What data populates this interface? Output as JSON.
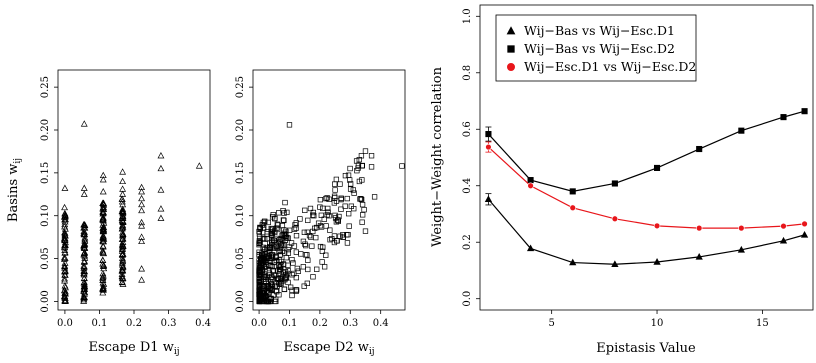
{
  "chart_data": [
    {
      "type": "scatter",
      "xlabel": "Escape D1",
      "xlabel_sub": "ij",
      "xlabel_var": "w",
      "ylabel": "Basins",
      "ylabel_var": "w",
      "ylabel_sub": "ij",
      "xlim": [
        -0.02,
        0.42
      ],
      "ylim": [
        -0.01,
        0.27
      ],
      "xticks": [
        "0.0",
        "0.1",
        "0.2",
        "0.3",
        "0.4"
      ],
      "yticks": [
        "0.00",
        "0.05",
        "0.10",
        "0.15",
        "0.20",
        "0.25"
      ],
      "marker": "open-triangle",
      "grid": false,
      "series": [
        {
          "columns": [
            {
              "x": 0.0,
              "ymin": 0.0,
              "ymax": 0.11
            },
            {
              "x": 0.056,
              "ymin": 0.0,
              "ymax": 0.09
            },
            {
              "x": 0.111,
              "ymin": 0.01,
              "ymax": 0.12
            },
            {
              "x": 0.167,
              "ymin": 0.02,
              "ymax": 0.12
            }
          ],
          "points": [
            {
              "x": 0.0,
              "y": 0.132
            },
            {
              "x": 0.056,
              "y": 0.207
            },
            {
              "x": 0.056,
              "y": 0.132
            },
            {
              "x": 0.056,
              "y": 0.125
            },
            {
              "x": 0.111,
              "y": 0.147
            },
            {
              "x": 0.111,
              "y": 0.142
            },
            {
              "x": 0.111,
              "y": 0.128
            },
            {
              "x": 0.167,
              "y": 0.151
            },
            {
              "x": 0.167,
              "y": 0.14
            },
            {
              "x": 0.167,
              "y": 0.131
            },
            {
              "x": 0.167,
              "y": 0.125
            },
            {
              "x": 0.222,
              "y": 0.133
            },
            {
              "x": 0.222,
              "y": 0.128
            },
            {
              "x": 0.222,
              "y": 0.12
            },
            {
              "x": 0.222,
              "y": 0.113
            },
            {
              "x": 0.222,
              "y": 0.106
            },
            {
              "x": 0.222,
              "y": 0.092
            },
            {
              "x": 0.222,
              "y": 0.088
            },
            {
              "x": 0.222,
              "y": 0.075
            },
            {
              "x": 0.222,
              "y": 0.07
            },
            {
              "x": 0.222,
              "y": 0.038
            },
            {
              "x": 0.222,
              "y": 0.025
            },
            {
              "x": 0.278,
              "y": 0.17
            },
            {
              "x": 0.278,
              "y": 0.155
            },
            {
              "x": 0.278,
              "y": 0.13
            },
            {
              "x": 0.278,
              "y": 0.108
            },
            {
              "x": 0.278,
              "y": 0.097
            },
            {
              "x": 0.389,
              "y": 0.158
            }
          ]
        }
      ]
    },
    {
      "type": "scatter",
      "xlabel": "Escape D2",
      "xlabel_var": "w",
      "xlabel_sub": "ij",
      "xlim": [
        -0.02,
        0.48
      ],
      "ylim": [
        -0.01,
        0.27
      ],
      "xticks": [
        "0.0",
        "0.1",
        "0.2",
        "0.3",
        "0.4"
      ],
      "yticks": [
        "0.00",
        "0.05",
        "0.10",
        "0.15",
        "0.20",
        "0.25"
      ],
      "marker": "open-square",
      "grid": false,
      "trend": {
        "slope": 0.34,
        "intercept": 0.012,
        "spread": 0.045,
        "x_range": [
          0.0,
          0.35
        ]
      },
      "series": [
        {
          "points": [
            {
              "x": 0.1,
              "y": 0.206
            },
            {
              "x": 0.47,
              "y": 0.158
            },
            {
              "x": 0.37,
              "y": 0.17
            },
            {
              "x": 0.37,
              "y": 0.157
            },
            {
              "x": 0.38,
              "y": 0.122
            },
            {
              "x": 0.35,
              "y": 0.082
            },
            {
              "x": 0.33,
              "y": 0.14
            },
            {
              "x": 0.31,
              "y": 0.13
            },
            {
              "x": 0.29,
              "y": 0.12
            },
            {
              "x": 0.27,
              "y": 0.12
            },
            {
              "x": 0.25,
              "y": 0.13
            },
            {
              "x": 0.22,
              "y": 0.12
            },
            {
              "x": 0.26,
              "y": 0.095
            },
            {
              "x": 0.23,
              "y": 0.1
            },
            {
              "x": 0.2,
              "y": 0.11
            },
            {
              "x": 0.18,
              "y": 0.1
            },
            {
              "x": 0.06,
              "y": 0.09
            },
            {
              "x": 0.04,
              "y": 0.085
            },
            {
              "x": 0.08,
              "y": 0.095
            }
          ]
        }
      ]
    },
    {
      "type": "line",
      "xlabel": "Epistasis Value",
      "ylabel": "Weight−Weight correlation",
      "xlim": [
        1.6,
        17.4
      ],
      "ylim": [
        -0.04,
        1.04
      ],
      "xticks": [
        "5",
        "10",
        "15"
      ],
      "yticks": [
        "0.0",
        "0.2",
        "0.4",
        "0.6",
        "0.8",
        "1.0"
      ],
      "legend_position": "top-left",
      "grid": false,
      "x": [
        2,
        4,
        6,
        8,
        10,
        12,
        14,
        16,
        17
      ],
      "series": [
        {
          "name": "Wij−Bas vs Wij−Esc.D1",
          "marker": "triangle",
          "color": "#000000",
          "values": [
            0.352,
            0.178,
            0.128,
            0.122,
            0.13,
            0.148,
            0.173,
            0.205,
            0.226
          ],
          "error_at_first": 0.02
        },
        {
          "name": "Wij−Bas vs Wij−Esc.D2",
          "marker": "square",
          "color": "#000000",
          "values": [
            0.583,
            0.42,
            0.38,
            0.408,
            0.463,
            0.53,
            0.595,
            0.643,
            0.664
          ],
          "error_at_first": 0.025
        },
        {
          "name": "Wij−Esc.D1 vs Wij−Esc.D2",
          "marker": "circle",
          "color": "#e8161b",
          "values": [
            0.537,
            0.4,
            0.322,
            0.283,
            0.258,
            0.25,
            0.25,
            0.257,
            0.265
          ],
          "error_at_first": 0.018
        }
      ]
    }
  ]
}
